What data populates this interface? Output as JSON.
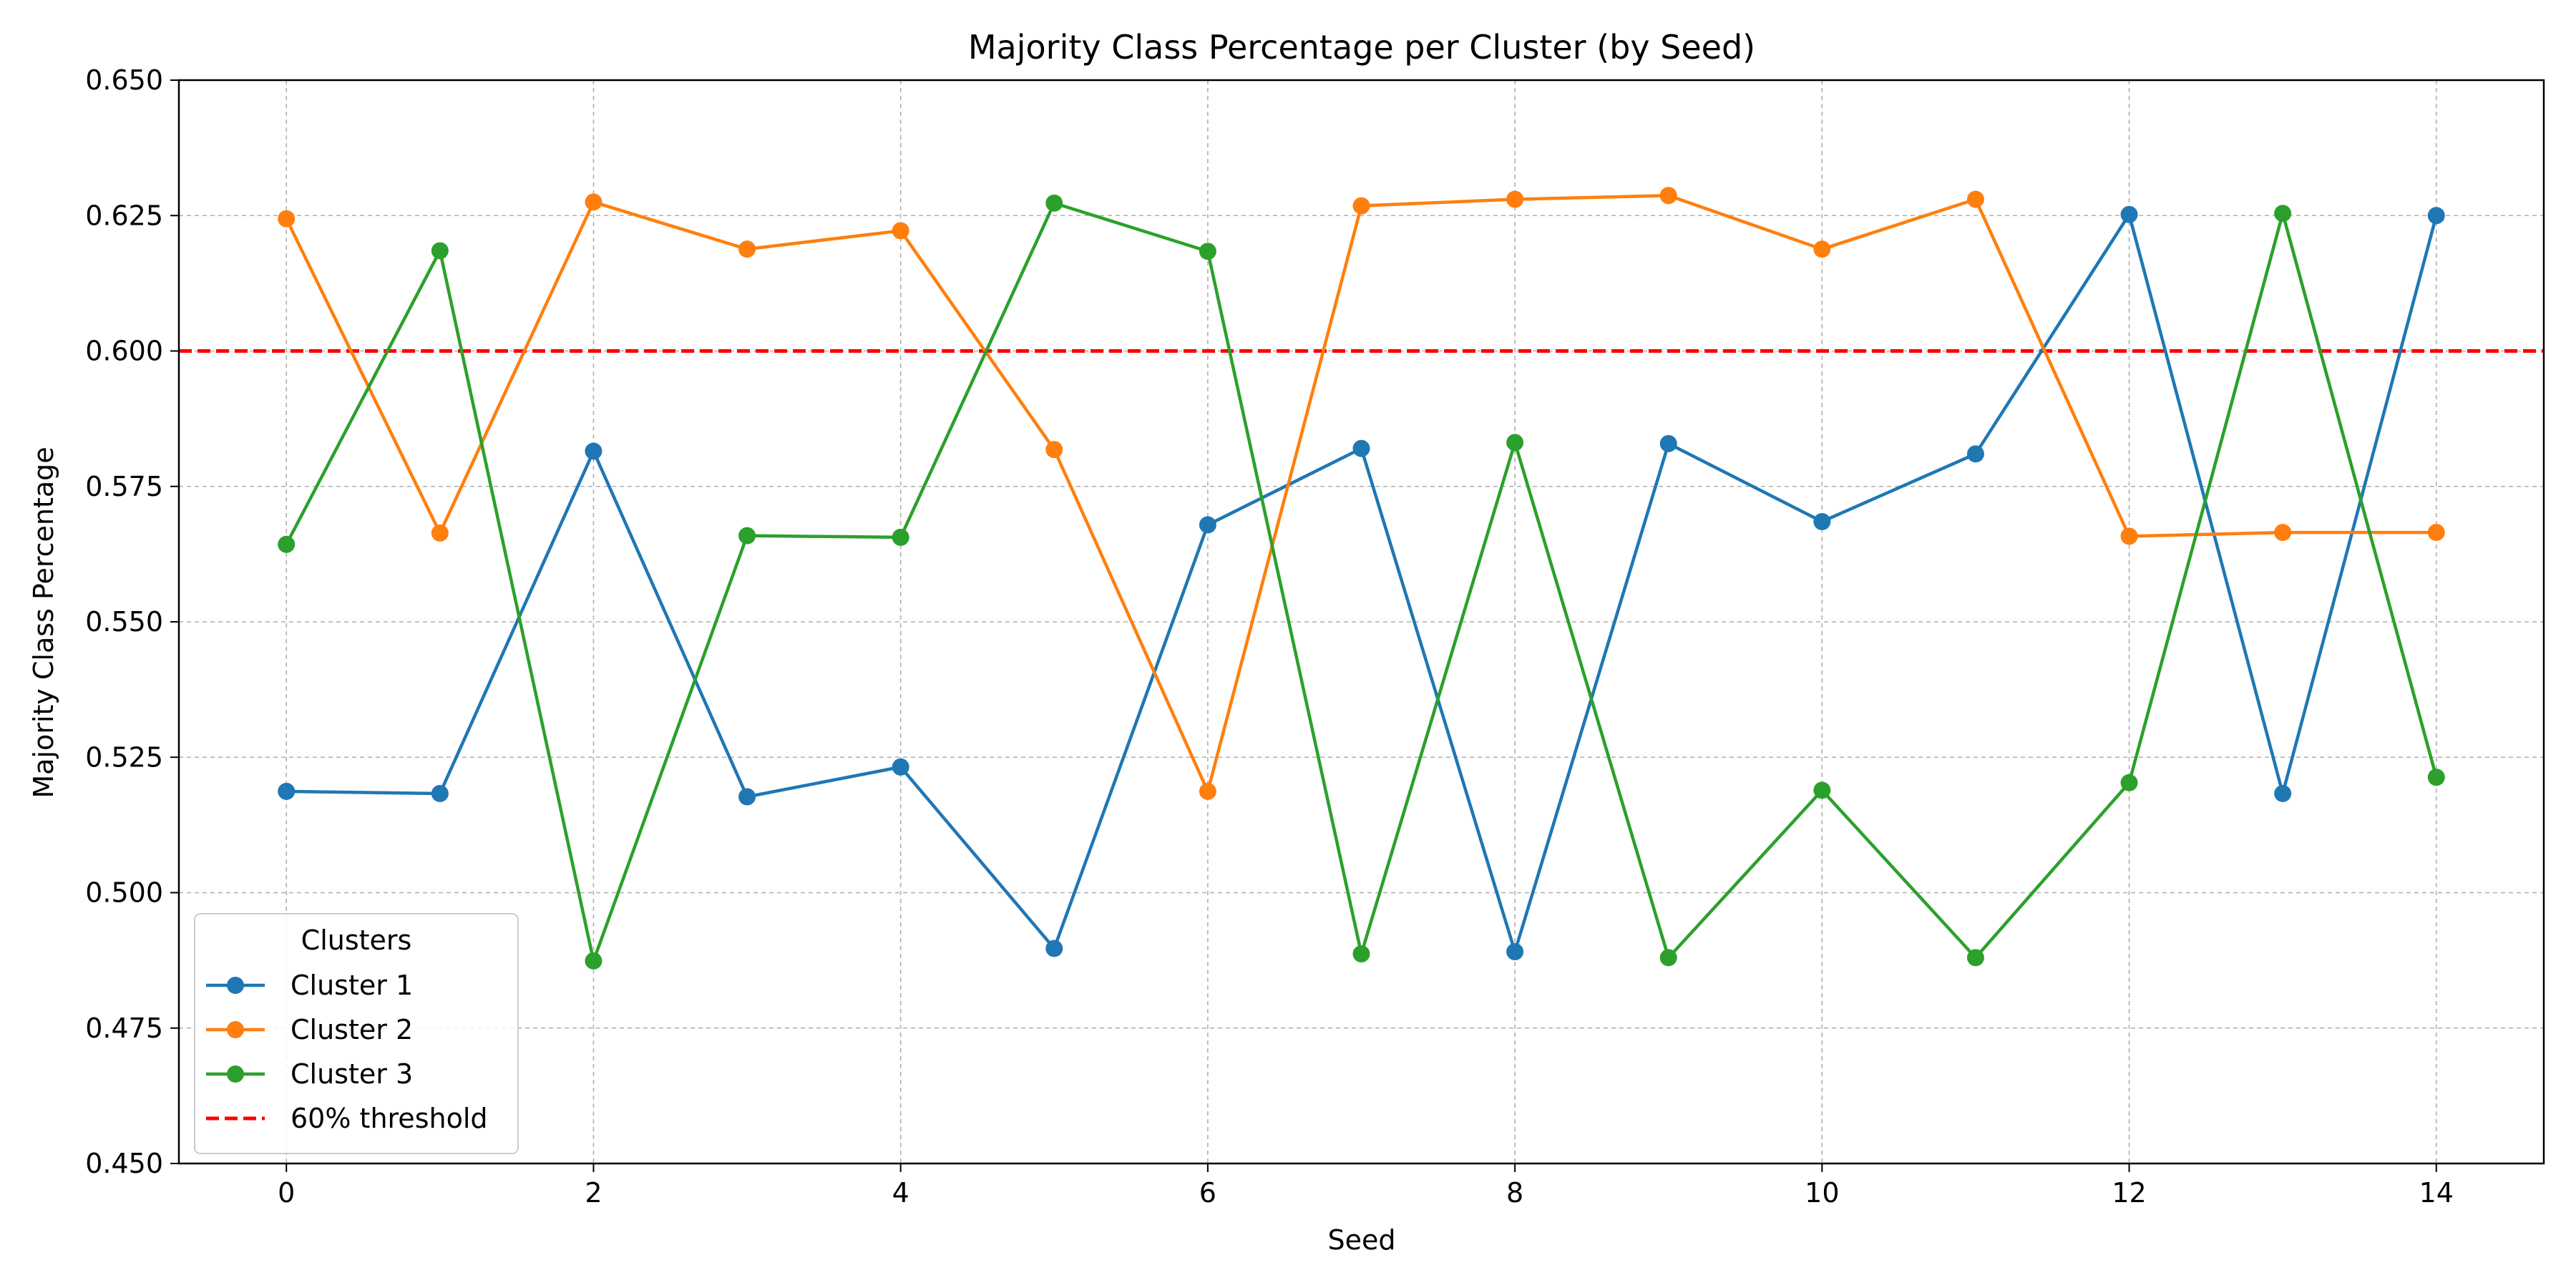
{
  "chart_data": {
    "type": "line",
    "title": "Majority Class Percentage per Cluster (by Seed)",
    "xlabel": "Seed",
    "ylabel": "Majority Class Percentage",
    "xlim": [
      -0.7,
      14.7
    ],
    "ylim": [
      0.45,
      0.65
    ],
    "xticks": [
      0,
      2,
      4,
      6,
      8,
      10,
      12,
      14
    ],
    "yticks": [
      0.45,
      0.475,
      0.5,
      0.525,
      0.55,
      0.575,
      0.6,
      0.625,
      0.65
    ],
    "ytick_labels": [
      "0.450",
      "0.475",
      "0.500",
      "0.525",
      "0.550",
      "0.575",
      "0.600",
      "0.625",
      "0.650"
    ],
    "grid": true,
    "legend_title": "Clusters",
    "legend_placement": "lower-left",
    "x": [
      0,
      1,
      2,
      3,
      4,
      5,
      6,
      7,
      8,
      9,
      10,
      11,
      12,
      13,
      14
    ],
    "series": [
      {
        "name": "Cluster 1",
        "color": "#1f77b4",
        "values": [
          0.5187,
          0.5183,
          0.5815,
          0.5177,
          0.5232,
          0.4897,
          0.5679,
          0.582,
          0.4891,
          0.5829,
          0.5685,
          0.581,
          0.6252,
          0.5183,
          0.625
        ]
      },
      {
        "name": "Cluster 2",
        "color": "#ff7f0e",
        "values": [
          0.6244,
          0.5664,
          0.6275,
          0.6188,
          0.6222,
          0.5818,
          0.5187,
          0.6268,
          0.628,
          0.6287,
          0.6188,
          0.628,
          0.5658,
          0.5665,
          0.5665
        ]
      },
      {
        "name": "Cluster 3",
        "color": "#2ca02c",
        "values": [
          0.5643,
          0.6185,
          0.4874,
          0.5659,
          0.5656,
          0.6273,
          0.6184,
          0.4887,
          0.5831,
          0.488,
          0.5189,
          0.488,
          0.5203,
          0.6254,
          0.5213
        ]
      }
    ],
    "threshold": {
      "name": "60% threshold",
      "value": 0.6,
      "color": "#ff0000"
    }
  }
}
